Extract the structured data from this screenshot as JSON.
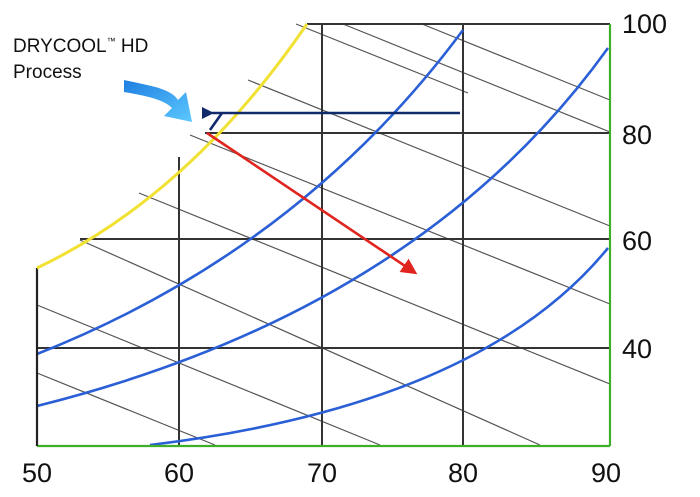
{
  "callout": {
    "line1_brand": "DRYCOOL",
    "line1_tm": "™",
    "line1_suffix": " HD",
    "line2": "Process"
  },
  "chart_data": {
    "type": "psychrometric",
    "x_tick_labels": [
      "50",
      "60",
      "70",
      "80",
      "90"
    ],
    "y_tick_labels": [
      "100",
      "80",
      "60",
      "40"
    ],
    "xlim": [
      50,
      90
    ],
    "ylim": [
      20,
      100
    ],
    "grid": true,
    "colors": {
      "frame": "#3faf2a",
      "saturation_curve": "#f1e132",
      "grid": "#333333",
      "diagonal": "#555555",
      "humidity_curves": "#2a5fd6",
      "arrow_horizontal": "#102a6b",
      "arrow_process": "#e0241e",
      "callout_arrow": "#2ea8f0"
    },
    "icons": [
      "callout-swoosh-arrow-icon"
    ]
  }
}
